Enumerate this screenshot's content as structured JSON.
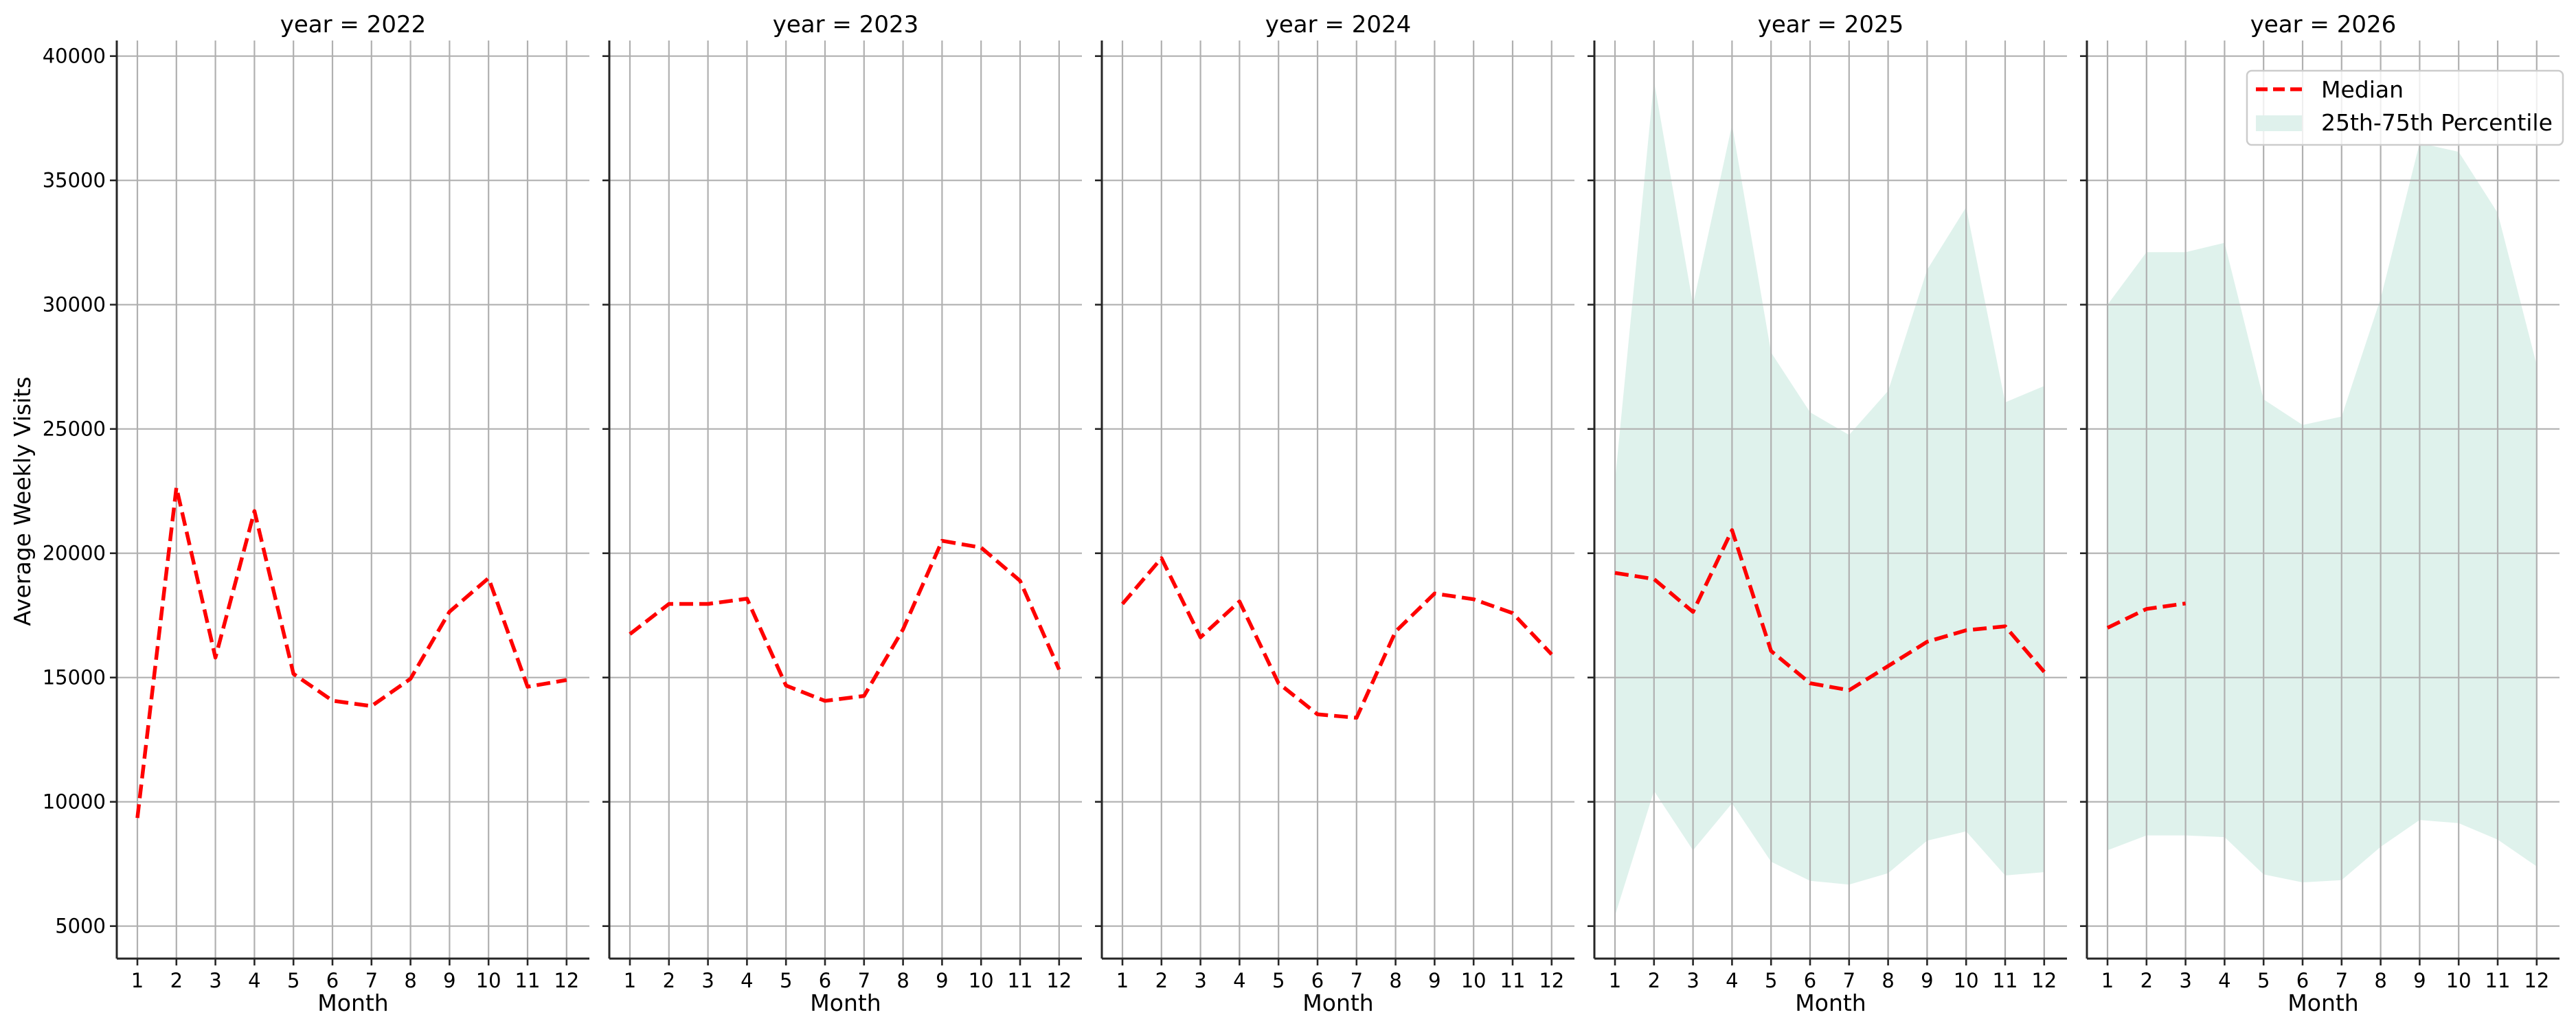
{
  "chart_data": {
    "type": "line",
    "layout": "faceted small multiples (1 row x 5 columns), shared y-axis",
    "facet_variable": "year",
    "xlabel": "Month",
    "ylabel": "Average Weekly Visits",
    "x": [
      1,
      2,
      3,
      4,
      5,
      6,
      7,
      8,
      9,
      10,
      11,
      12
    ],
    "x_tick_labels": [
      "1",
      "2",
      "3",
      "4",
      "5",
      "6",
      "7",
      "8",
      "9",
      "10",
      "11",
      "12"
    ],
    "y_ticks": [
      5000,
      10000,
      15000,
      20000,
      25000,
      30000,
      35000,
      40000
    ],
    "y_tick_labels": [
      "5000",
      "10000",
      "15000",
      "20000",
      "25000",
      "30000",
      "35000",
      "40000"
    ],
    "ylim": [
      3400,
      40900
    ],
    "xlim": [
      0.45,
      12.55
    ],
    "grid": true,
    "legend": {
      "position": "upper right (in year = 2026 panel)",
      "entries": [
        {
          "label": "Median",
          "style": "dashed line",
          "color": "#ff0000"
        },
        {
          "label": "25th-75th Percentile",
          "style": "filled band",
          "color": "#dff1ec"
        }
      ]
    },
    "colors": {
      "median": "#ff0000",
      "band": "#dff1ec",
      "grid": "#b0b0b0"
    },
    "panels": [
      {
        "title": "year = 2022",
        "median": [
          9350,
          22650,
          15800,
          21700,
          15150,
          14070,
          13850,
          14950,
          17650,
          19000,
          14630,
          14900
        ],
        "p25": null,
        "p75": null
      },
      {
        "title": "year = 2023",
        "median": [
          16750,
          17960,
          17960,
          18170,
          14680,
          14060,
          14260,
          16940,
          20500,
          20230,
          18890,
          15320
        ],
        "p25": null,
        "p75": null
      },
      {
        "title": "year = 2024",
        "median": [
          17960,
          19800,
          16620,
          18060,
          14770,
          13520,
          13380,
          16850,
          18380,
          18150,
          17590,
          15930
        ],
        "p25": null,
        "p75": null
      },
      {
        "title": "year = 2025",
        "median": [
          19210,
          18960,
          17640,
          20930,
          16070,
          14770,
          14490,
          15460,
          16440,
          16900,
          17060,
          15230
        ],
        "p25": [
          5420,
          10440,
          8050,
          9940,
          7590,
          6820,
          6670,
          7130,
          8440,
          8810,
          7040,
          7170
        ],
        "p75": [
          22900,
          39000,
          30000,
          37240,
          28080,
          25670,
          24760,
          26530,
          31400,
          33920,
          26070,
          26730
        ]
      },
      {
        "title": "year = 2026",
        "median": [
          17000,
          17760,
          17980,
          null,
          null,
          null,
          null,
          null,
          null,
          null,
          null,
          null
        ],
        "p25": [
          8050,
          8650,
          8650,
          8580,
          7080,
          6760,
          6850,
          8190,
          9270,
          9140,
          8480,
          7400
        ],
        "p75": [
          30000,
          32110,
          32110,
          32490,
          26190,
          25160,
          25500,
          30250,
          36500,
          36150,
          33690,
          27570
        ]
      }
    ]
  }
}
